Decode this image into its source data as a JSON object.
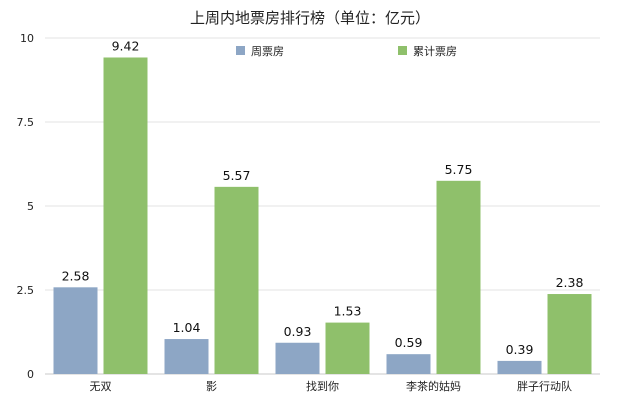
{
  "chart_data": {
    "type": "bar",
    "title": "上周内地票房排行榜（单位：亿元）",
    "categories": [
      "无双",
      "影",
      "找到你",
      "李茶的姑妈",
      "胖子行动队"
    ],
    "series": [
      {
        "name": "周票房",
        "values": [
          2.58,
          1.04,
          0.93,
          0.59,
          0.39
        ],
        "color": "#8da6c5"
      },
      {
        "name": "累计票房",
        "values": [
          9.42,
          5.57,
          1.53,
          5.75,
          2.38
        ],
        "color": "#8fc06b"
      }
    ],
    "ylim": [
      0,
      10
    ],
    "yticks": [
      "0",
      "2.5",
      "5",
      "7.5",
      "10"
    ],
    "grid": true,
    "legend": "top-center",
    "data_labels": true
  }
}
